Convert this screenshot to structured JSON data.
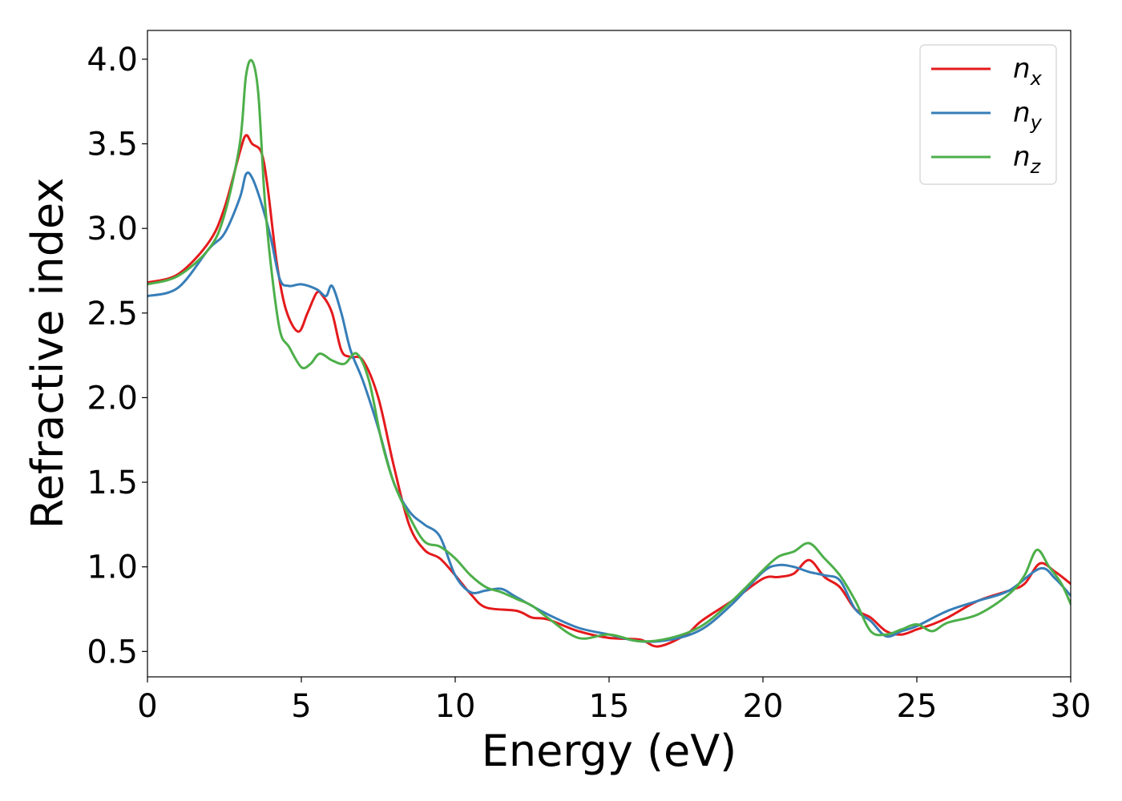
{
  "chart_data": {
    "type": "line",
    "xlabel": "Energy (eV)",
    "ylabel": "Refractive index",
    "xlim": [
      0,
      30
    ],
    "ylim": [
      0.35,
      4.17
    ],
    "xticks": [
      0,
      5,
      10,
      15,
      20,
      25,
      30
    ],
    "xtick_labels": [
      "0",
      "5",
      "10",
      "15",
      "20",
      "25",
      "30"
    ],
    "yticks": [
      0.5,
      1.0,
      1.5,
      2.0,
      2.5,
      3.0,
      3.5,
      4.0
    ],
    "ytick_labels": [
      "0.5",
      "1.0",
      "1.5",
      "2.0",
      "2.5",
      "3.0",
      "3.5",
      "4.0"
    ],
    "grid": false,
    "legend_position": "top-right",
    "series": [
      {
        "name": "n_x",
        "label_main": "n",
        "label_sub": "x",
        "color": "#e41a1c",
        "x": [
          0,
          1,
          2,
          2.5,
          3.0,
          3.2,
          3.4,
          3.7,
          3.9,
          4.2,
          4.5,
          4.9,
          5.2,
          5.5,
          5.7,
          6.0,
          6.3,
          6.6,
          7.0,
          7.5,
          8.0,
          8.5,
          9.0,
          9.5,
          10.0,
          10.5,
          11.0,
          12.0,
          12.5,
          13.0,
          14.0,
          15.0,
          16.0,
          16.6,
          17.5,
          18.0,
          19.0,
          20.0,
          20.5,
          21.0,
          21.5,
          22.0,
          22.5,
          23.0,
          23.5,
          24.0,
          24.5,
          25.0,
          25.5,
          26.0,
          27.0,
          28.0,
          28.5,
          29.0,
          29.5,
          30.0
        ],
        "y": [
          2.68,
          2.73,
          2.92,
          3.12,
          3.45,
          3.55,
          3.5,
          3.45,
          3.25,
          2.8,
          2.52,
          2.39,
          2.5,
          2.62,
          2.6,
          2.5,
          2.28,
          2.24,
          2.22,
          2.0,
          1.6,
          1.25,
          1.1,
          1.05,
          0.95,
          0.84,
          0.76,
          0.74,
          0.7,
          0.69,
          0.62,
          0.58,
          0.57,
          0.53,
          0.6,
          0.68,
          0.8,
          0.93,
          0.94,
          0.96,
          1.04,
          0.94,
          0.88,
          0.75,
          0.7,
          0.62,
          0.6,
          0.63,
          0.66,
          0.7,
          0.8,
          0.86,
          0.9,
          1.02,
          0.97,
          0.9
        ]
      },
      {
        "name": "n_y",
        "label_main": "n",
        "label_sub": "y",
        "color": "#377eb8",
        "x": [
          0,
          1,
          2,
          2.5,
          3.0,
          3.2,
          3.4,
          3.7,
          4.0,
          4.3,
          4.6,
          5.0,
          5.5,
          5.8,
          6.0,
          6.3,
          6.6,
          7.0,
          7.5,
          8.0,
          8.5,
          9.0,
          9.5,
          10.0,
          10.5,
          11.0,
          11.5,
          12.0,
          13.0,
          14.0,
          15.0,
          16.0,
          17.0,
          18.0,
          19.0,
          20.0,
          20.5,
          21.0,
          21.5,
          22.0,
          22.5,
          23.0,
          23.5,
          24.0,
          24.5,
          25.0,
          26.0,
          27.0,
          28.0,
          29.0,
          29.5,
          30.0
        ],
        "y": [
          2.6,
          2.65,
          2.88,
          2.97,
          3.18,
          3.32,
          3.3,
          3.15,
          2.95,
          2.7,
          2.66,
          2.67,
          2.64,
          2.6,
          2.66,
          2.5,
          2.28,
          2.1,
          1.82,
          1.5,
          1.33,
          1.25,
          1.18,
          0.95,
          0.85,
          0.86,
          0.87,
          0.82,
          0.72,
          0.64,
          0.6,
          0.56,
          0.57,
          0.63,
          0.78,
          0.97,
          1.01,
          1.0,
          0.97,
          0.95,
          0.92,
          0.75,
          0.68,
          0.59,
          0.62,
          0.65,
          0.74,
          0.8,
          0.86,
          0.99,
          0.93,
          0.83
        ]
      },
      {
        "name": "n_z",
        "label_main": "n",
        "label_sub": "z",
        "color": "#4daf4a",
        "x": [
          0,
          1,
          2,
          2.5,
          3.0,
          3.2,
          3.4,
          3.6,
          3.8,
          4.0,
          4.3,
          4.6,
          5.0,
          5.3,
          5.6,
          6.0,
          6.4,
          6.8,
          7.2,
          7.6,
          8.0,
          8.5,
          9.0,
          9.5,
          10.0,
          10.5,
          11.0,
          11.5,
          12.0,
          12.5,
          13.0,
          14.0,
          15.0,
          16.0,
          17.0,
          18.0,
          19.0,
          20.0,
          20.5,
          21.0,
          21.5,
          22.0,
          22.5,
          23.0,
          23.5,
          24.0,
          24.5,
          25.0,
          25.5,
          26.0,
          27.0,
          28.0,
          28.5,
          28.9,
          29.3,
          29.7,
          30.0
        ],
        "y": [
          2.67,
          2.72,
          2.88,
          3.08,
          3.5,
          3.9,
          3.99,
          3.8,
          3.2,
          2.8,
          2.4,
          2.3,
          2.18,
          2.2,
          2.26,
          2.22,
          2.2,
          2.26,
          2.1,
          1.75,
          1.5,
          1.3,
          1.15,
          1.12,
          1.05,
          0.95,
          0.88,
          0.85,
          0.81,
          0.77,
          0.7,
          0.58,
          0.6,
          0.56,
          0.58,
          0.65,
          0.8,
          0.98,
          1.06,
          1.09,
          1.14,
          1.05,
          0.95,
          0.8,
          0.62,
          0.6,
          0.63,
          0.66,
          0.62,
          0.67,
          0.72,
          0.84,
          0.95,
          1.1,
          1.0,
          0.9,
          0.78
        ]
      }
    ]
  }
}
